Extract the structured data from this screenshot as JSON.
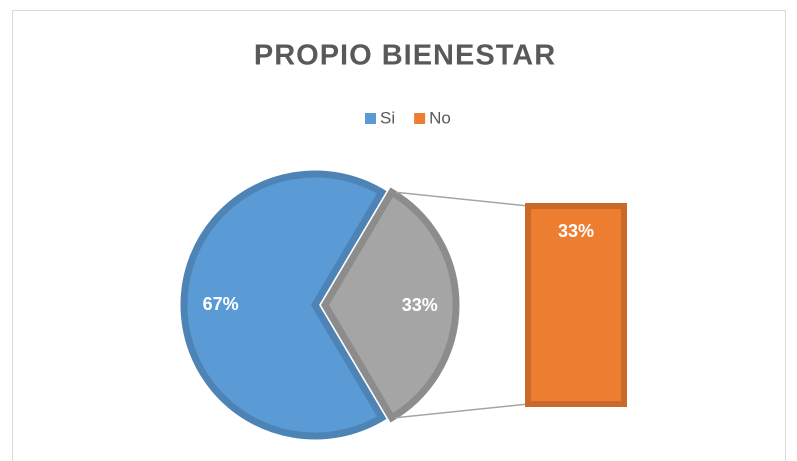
{
  "chart_data": {
    "type": "bar_of_pie",
    "title": "PROPIO BIENESTAR",
    "categories": [
      "Si",
      "No"
    ],
    "values": [
      67,
      33
    ],
    "value_labels": [
      "67%",
      "33%"
    ],
    "colors": [
      "#5b9bd5",
      "#ed7d31"
    ],
    "other_color": "#a5a5a5",
    "secondary": [
      1
    ],
    "legend": "top"
  }
}
